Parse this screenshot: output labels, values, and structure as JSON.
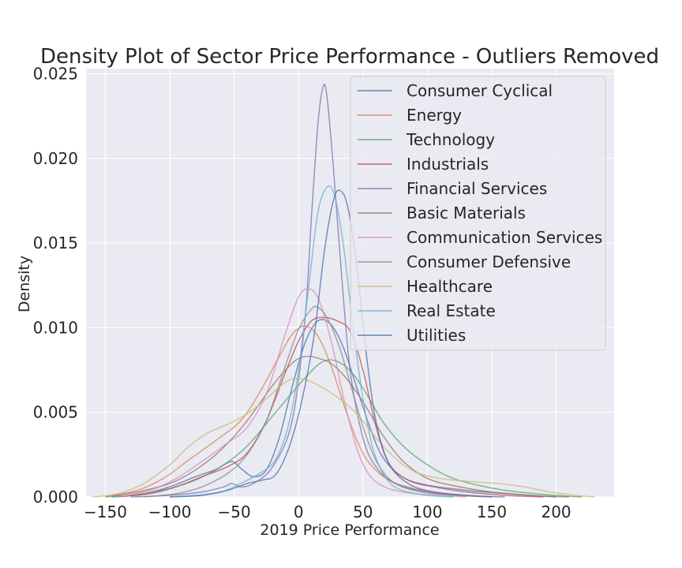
{
  "chart_data": {
    "type": "line",
    "title": "Density Plot of Sector Price Performance - Outliers Removed",
    "xlabel": "2019 Price Performance",
    "ylabel": "Density",
    "xlim": [
      -165,
      245
    ],
    "ylim": [
      0,
      0.0253
    ],
    "xticks": [
      -150,
      -100,
      -50,
      0,
      50,
      100,
      150,
      200
    ],
    "xtick_labels": [
      "−150",
      "−100",
      "−50",
      "0",
      "50",
      "100",
      "150",
      "200"
    ],
    "yticks": [
      0.0,
      0.005,
      0.01,
      0.015,
      0.02,
      0.025
    ],
    "ytick_labels": [
      "0.000",
      "0.005",
      "0.010",
      "0.015",
      "0.020",
      "0.025"
    ],
    "grid": true,
    "legend_position": "top-right",
    "series": [
      {
        "name": "Consumer Cyclical",
        "color": "#4c72b0",
        "points": [
          [
            -145,
            0
          ],
          [
            -120,
            0.0002
          ],
          [
            -100,
            0.0006
          ],
          [
            -80,
            0.0012
          ],
          [
            -65,
            0.0016
          ],
          [
            -52,
            0.0021
          ],
          [
            -45,
            0.0017
          ],
          [
            -35,
            0.0012
          ],
          [
            -25,
            0.0016
          ],
          [
            -15,
            0.0035
          ],
          [
            -5,
            0.0065
          ],
          [
            5,
            0.0091
          ],
          [
            15,
            0.0104
          ],
          [
            25,
            0.0102
          ],
          [
            35,
            0.0088
          ],
          [
            45,
            0.0065
          ],
          [
            55,
            0.0042
          ],
          [
            65,
            0.0024
          ],
          [
            80,
            0.0012
          ],
          [
            100,
            0.0007
          ],
          [
            130,
            0.0004
          ],
          [
            160,
            0.0002
          ],
          [
            200,
            0
          ]
        ]
      },
      {
        "name": "Energy",
        "color": "#dd8452",
        "points": [
          [
            -150,
            0
          ],
          [
            -125,
            0.0004
          ],
          [
            -105,
            0.0011
          ],
          [
            -85,
            0.0022
          ],
          [
            -65,
            0.0033
          ],
          [
            -45,
            0.0045
          ],
          [
            -30,
            0.0062
          ],
          [
            -15,
            0.0083
          ],
          [
            -5,
            0.0096
          ],
          [
            5,
            0.0101
          ],
          [
            15,
            0.0095
          ],
          [
            25,
            0.0078
          ],
          [
            35,
            0.0055
          ],
          [
            45,
            0.0034
          ],
          [
            55,
            0.002
          ],
          [
            70,
            0.001
          ],
          [
            90,
            0.0005
          ],
          [
            115,
            0.0002
          ],
          [
            150,
            0
          ]
        ]
      },
      {
        "name": "Technology",
        "color": "#55a868",
        "points": [
          [
            -145,
            0
          ],
          [
            -120,
            0.0002
          ],
          [
            -100,
            0.0005
          ],
          [
            -80,
            0.001
          ],
          [
            -60,
            0.0018
          ],
          [
            -40,
            0.003
          ],
          [
            -20,
            0.0048
          ],
          [
            0,
            0.0066
          ],
          [
            15,
            0.0078
          ],
          [
            25,
            0.0081
          ],
          [
            35,
            0.0078
          ],
          [
            45,
            0.007
          ],
          [
            55,
            0.0058
          ],
          [
            65,
            0.0045
          ],
          [
            80,
            0.0031
          ],
          [
            100,
            0.0019
          ],
          [
            120,
            0.0011
          ],
          [
            145,
            0.0006
          ],
          [
            170,
            0.0003
          ],
          [
            200,
            0.0001
          ],
          [
            220,
            0
          ]
        ]
      },
      {
        "name": "Industrials",
        "color": "#c44e52",
        "points": [
          [
            -140,
            0
          ],
          [
            -115,
            0.0002
          ],
          [
            -95,
            0.0006
          ],
          [
            -75,
            0.0012
          ],
          [
            -55,
            0.0018
          ],
          [
            -40,
            0.0026
          ],
          [
            -25,
            0.0045
          ],
          [
            -10,
            0.0074
          ],
          [
            0,
            0.0092
          ],
          [
            10,
            0.0104
          ],
          [
            20,
            0.0106
          ],
          [
            30,
            0.0104
          ],
          [
            40,
            0.0098
          ],
          [
            50,
            0.0075
          ],
          [
            60,
            0.0042
          ],
          [
            70,
            0.002
          ],
          [
            85,
            0.001
          ],
          [
            105,
            0.0006
          ],
          [
            130,
            0.0003
          ],
          [
            160,
            0.0001
          ],
          [
            190,
            0
          ]
        ]
      },
      {
        "name": "Financial Services",
        "color": "#8172b3",
        "points": [
          [
            -130,
            0
          ],
          [
            -100,
            0.0001
          ],
          [
            -75,
            0.0003
          ],
          [
            -58,
            0.0006
          ],
          [
            -52,
            0.0008
          ],
          [
            -45,
            0.0006
          ],
          [
            -35,
            0.0008
          ],
          [
            -20,
            0.0018
          ],
          [
            -5,
            0.0045
          ],
          [
            5,
            0.0105
          ],
          [
            10,
            0.0165
          ],
          [
            15,
            0.022
          ],
          [
            19,
            0.0242
          ],
          [
            22,
            0.0237
          ],
          [
            27,
            0.0195
          ],
          [
            33,
            0.0135
          ],
          [
            40,
            0.0075
          ],
          [
            50,
            0.0035
          ],
          [
            60,
            0.0018
          ],
          [
            75,
            0.0008
          ],
          [
            100,
            0.0003
          ],
          [
            130,
            0.0001
          ],
          [
            150,
            0
          ]
        ]
      },
      {
        "name": "Basic Materials",
        "color": "#937860",
        "points": [
          [
            -150,
            0
          ],
          [
            -125,
            0.0003
          ],
          [
            -100,
            0.0008
          ],
          [
            -80,
            0.0016
          ],
          [
            -60,
            0.0028
          ],
          [
            -40,
            0.0045
          ],
          [
            -20,
            0.0066
          ],
          [
            -5,
            0.0079
          ],
          [
            5,
            0.0083
          ],
          [
            15,
            0.0082
          ],
          [
            25,
            0.0079
          ],
          [
            35,
            0.0072
          ],
          [
            45,
            0.0062
          ],
          [
            55,
            0.005
          ],
          [
            65,
            0.0037
          ],
          [
            80,
            0.0022
          ],
          [
            100,
            0.0011
          ],
          [
            125,
            0.0006
          ],
          [
            150,
            0.0003
          ],
          [
            180,
            0.0001
          ],
          [
            210,
            0
          ]
        ]
      },
      {
        "name": "Communication Services",
        "color": "#da8bc3",
        "points": [
          [
            -140,
            0
          ],
          [
            -115,
            0.0004
          ],
          [
            -95,
            0.0011
          ],
          [
            -75,
            0.0021
          ],
          [
            -55,
            0.0032
          ],
          [
            -40,
            0.0041
          ],
          [
            -25,
            0.0061
          ],
          [
            -10,
            0.0097
          ],
          [
            0,
            0.0118
          ],
          [
            8,
            0.0123
          ],
          [
            16,
            0.0116
          ],
          [
            26,
            0.009
          ],
          [
            36,
            0.0055
          ],
          [
            46,
            0.0027
          ],
          [
            56,
            0.0012
          ],
          [
            70,
            0.0005
          ],
          [
            90,
            0.0002
          ],
          [
            110,
            0.0001
          ],
          [
            130,
            0
          ]
        ]
      },
      {
        "name": "Consumer Defensive",
        "color": "#8c8c8c",
        "points": [
          [
            -120,
            0
          ],
          [
            -95,
            0.0002
          ],
          [
            -75,
            0.0006
          ],
          [
            -55,
            0.0014
          ],
          [
            -40,
            0.0025
          ],
          [
            -25,
            0.0045
          ],
          [
            -10,
            0.0078
          ],
          [
            0,
            0.0099
          ],
          [
            10,
            0.0111
          ],
          [
            15,
            0.0112
          ],
          [
            22,
            0.0106
          ],
          [
            32,
            0.0088
          ],
          [
            42,
            0.0062
          ],
          [
            52,
            0.0037
          ],
          [
            62,
            0.0019
          ],
          [
            75,
            0.0008
          ],
          [
            95,
            0.0003
          ],
          [
            120,
            0.0001
          ],
          [
            150,
            0
          ]
        ]
      },
      {
        "name": "Healthcare",
        "color": "#ccb974",
        "points": [
          [
            -160,
            0
          ],
          [
            -140,
            0.0002
          ],
          [
            -120,
            0.0008
          ],
          [
            -100,
            0.0019
          ],
          [
            -85,
            0.003
          ],
          [
            -70,
            0.0038
          ],
          [
            -55,
            0.0043
          ],
          [
            -40,
            0.0049
          ],
          [
            -25,
            0.0058
          ],
          [
            -10,
            0.0068
          ],
          [
            0,
            0.007
          ],
          [
            10,
            0.0068
          ],
          [
            20,
            0.0064
          ],
          [
            30,
            0.0059
          ],
          [
            40,
            0.0053
          ],
          [
            50,
            0.0045
          ],
          [
            60,
            0.0035
          ],
          [
            75,
            0.0023
          ],
          [
            90,
            0.0015
          ],
          [
            110,
            0.0011
          ],
          [
            135,
            0.0009
          ],
          [
            155,
            0.0008
          ],
          [
            175,
            0.0006
          ],
          [
            195,
            0.0003
          ],
          [
            215,
            0.0001
          ],
          [
            230,
            0
          ]
        ]
      },
      {
        "name": "Real Estate",
        "color": "#64b5cd",
        "points": [
          [
            -100,
            0
          ],
          [
            -80,
            0.0001
          ],
          [
            -60,
            0.0003
          ],
          [
            -45,
            0.0008
          ],
          [
            -30,
            0.0014
          ],
          [
            -18,
            0.0022
          ],
          [
            -8,
            0.0042
          ],
          [
            0,
            0.0075
          ],
          [
            8,
            0.0125
          ],
          [
            15,
            0.0168
          ],
          [
            22,
            0.0183
          ],
          [
            28,
            0.0178
          ],
          [
            35,
            0.0148
          ],
          [
            42,
            0.0102
          ],
          [
            50,
            0.0058
          ],
          [
            58,
            0.0028
          ],
          [
            68,
            0.0011
          ],
          [
            80,
            0.0004
          ],
          [
            100,
            0.0001
          ],
          [
            120,
            0
          ]
        ]
      },
      {
        "name": "Utilities",
        "color": "#4c72b0",
        "points": [
          [
            -100,
            0
          ],
          [
            -75,
            0.0001
          ],
          [
            -55,
            0.0004
          ],
          [
            -40,
            0.0008
          ],
          [
            -28,
            0.001
          ],
          [
            -18,
            0.0013
          ],
          [
            -8,
            0.0028
          ],
          [
            2,
            0.0055
          ],
          [
            12,
            0.0095
          ],
          [
            20,
            0.0145
          ],
          [
            27,
            0.0175
          ],
          [
            32,
            0.0181
          ],
          [
            38,
            0.0172
          ],
          [
            45,
            0.0138
          ],
          [
            52,
            0.0088
          ],
          [
            60,
            0.0045
          ],
          [
            70,
            0.002
          ],
          [
            85,
            0.0008
          ],
          [
            105,
            0.0003
          ],
          [
            130,
            0.0001
          ],
          [
            160,
            0
          ]
        ]
      }
    ]
  }
}
